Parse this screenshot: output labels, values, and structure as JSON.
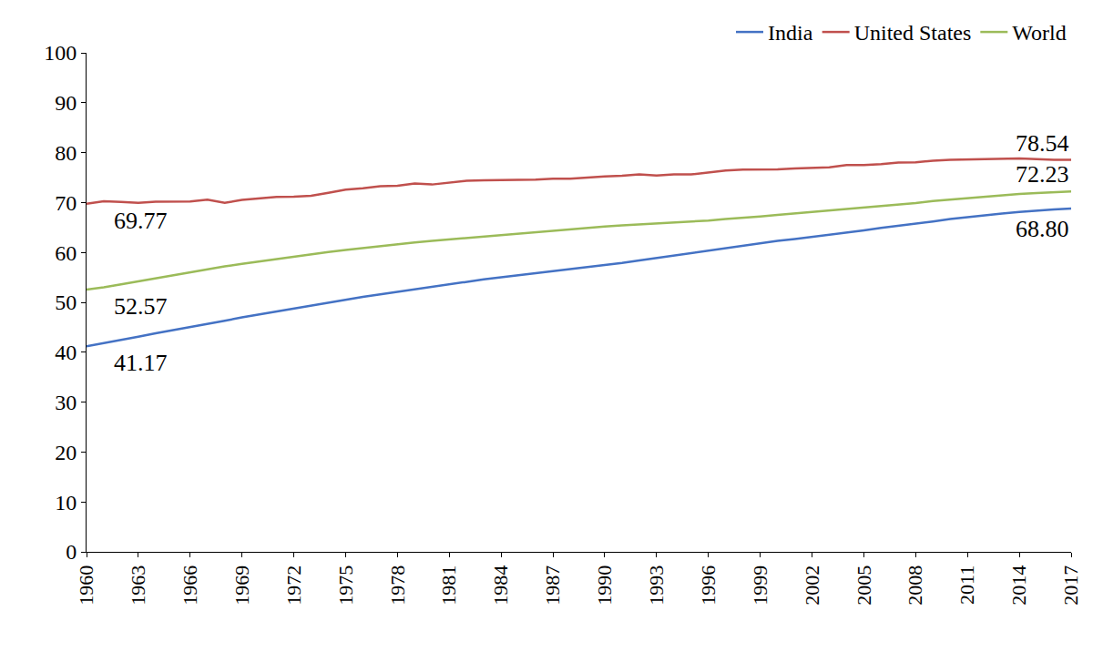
{
  "chart_data": {
    "type": "line",
    "x": [
      1960,
      1961,
      1962,
      1963,
      1964,
      1965,
      1966,
      1967,
      1968,
      1969,
      1970,
      1971,
      1972,
      1973,
      1974,
      1975,
      1976,
      1977,
      1978,
      1979,
      1980,
      1981,
      1982,
      1983,
      1984,
      1985,
      1986,
      1987,
      1988,
      1989,
      1990,
      1991,
      1992,
      1993,
      1994,
      1995,
      1996,
      1997,
      1998,
      1999,
      2000,
      2001,
      2002,
      2003,
      2004,
      2005,
      2006,
      2007,
      2008,
      2009,
      2010,
      2011,
      2012,
      2013,
      2014,
      2015,
      2016,
      2017
    ],
    "series": [
      {
        "name": "India",
        "color": "#4472c4",
        "values": [
          41.17,
          41.8,
          42.4,
          43.1,
          43.8,
          44.4,
          45.0,
          45.7,
          46.3,
          47.0,
          47.6,
          48.1,
          48.7,
          49.3,
          49.9,
          50.5,
          51.1,
          51.6,
          52.1,
          52.7,
          53.2,
          53.7,
          54.2,
          54.6,
          55.0,
          55.4,
          55.8,
          56.2,
          56.6,
          57.0,
          57.5,
          57.9,
          58.4,
          58.9,
          59.4,
          59.9,
          60.4,
          60.9,
          61.4,
          61.9,
          62.3,
          62.7,
          63.1,
          63.5,
          64.0,
          64.4,
          64.9,
          65.3,
          65.8,
          66.2,
          66.7,
          67.1,
          67.4,
          67.8,
          68.1,
          68.4,
          68.6,
          68.8
        ]
      },
      {
        "name": "United States",
        "color": "#c0504d",
        "values": [
          69.77,
          70.27,
          70.12,
          69.92,
          70.17,
          70.21,
          70.21,
          70.56,
          69.95,
          70.51,
          70.81,
          71.11,
          71.16,
          71.36,
          71.96,
          72.6,
          72.86,
          73.26,
          73.36,
          73.8,
          73.61,
          74.01,
          74.36,
          74.46,
          74.56,
          74.56,
          74.61,
          74.77,
          74.77,
          75.02,
          75.21,
          75.37,
          75.62,
          75.42,
          75.62,
          75.62,
          76.03,
          76.43,
          76.58,
          76.58,
          76.64,
          76.84,
          76.94,
          77.04,
          77.49,
          77.49,
          77.69,
          77.99,
          78.04,
          78.39,
          78.54,
          78.64,
          78.74,
          78.74,
          78.84,
          78.69,
          78.54,
          78.54
        ]
      },
      {
        "name": "World",
        "color": "#9bbb59",
        "values": [
          52.57,
          53.0,
          53.6,
          54.2,
          54.8,
          55.4,
          56.0,
          56.7,
          57.2,
          57.7,
          58.2,
          58.7,
          59.2,
          59.6,
          60.1,
          60.5,
          60.9,
          61.3,
          61.7,
          62.0,
          62.3,
          62.6,
          62.9,
          63.2,
          63.5,
          63.8,
          64.1,
          64.4,
          64.7,
          64.9,
          65.2,
          65.4,
          65.6,
          65.7,
          65.9,
          66.1,
          66.4,
          66.7,
          66.9,
          67.2,
          67.5,
          67.8,
          68.0,
          68.3,
          68.6,
          68.9,
          69.3,
          69.6,
          69.9,
          70.3,
          70.6,
          70.9,
          71.2,
          71.5,
          71.7,
          71.9,
          72.1,
          72.23
        ]
      }
    ],
    "annotations": [
      {
        "text": "69.77",
        "series": "United States",
        "x": 1960
      },
      {
        "text": "52.57",
        "series": "World",
        "x": 1960
      },
      {
        "text": "41.17",
        "series": "India",
        "x": 1960
      },
      {
        "text": "78.54",
        "series": "United States",
        "x": 2017
      },
      {
        "text": "72.23",
        "series": "World",
        "x": 2017
      },
      {
        "text": "68.80",
        "series": "India",
        "x": 2017
      }
    ],
    "xlim": [
      1960,
      2017
    ],
    "xticks": [
      1960,
      1963,
      1966,
      1969,
      1972,
      1975,
      1978,
      1981,
      1984,
      1987,
      1990,
      1993,
      1996,
      1999,
      2002,
      2005,
      2008,
      2011,
      2014,
      2017
    ],
    "ylim": [
      0,
      100
    ],
    "yticks": [
      0,
      10,
      20,
      30,
      40,
      50,
      60,
      70,
      80,
      90,
      100
    ],
    "grid": false,
    "legend": "top-right"
  }
}
